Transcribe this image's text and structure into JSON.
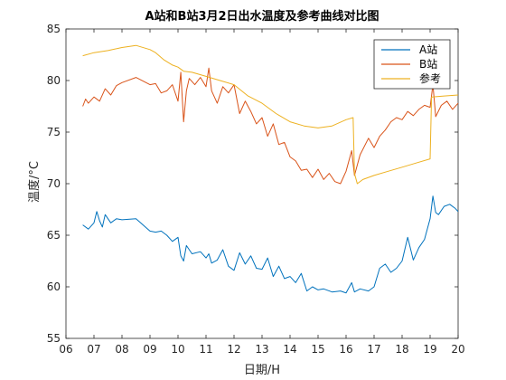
{
  "chart_data": {
    "type": "line",
    "title": "A站和B站3月2日出水温度及参考曲线对比图",
    "xlabel": "日期/H",
    "ylabel": "温度/°C",
    "xlim": [
      6,
      20
    ],
    "ylim": [
      55,
      85
    ],
    "xticks": [
      "06",
      "07",
      "08",
      "09",
      "10",
      "11",
      "12",
      "13",
      "14",
      "15",
      "16",
      "17",
      "18",
      "19",
      "20"
    ],
    "yticks": [
      "55",
      "60",
      "65",
      "70",
      "75",
      "80",
      "85"
    ],
    "grid": false,
    "legend_position": "top-right",
    "colors": {
      "A站": "#0072BD",
      "B站": "#D95319",
      "参考": "#EDB120"
    },
    "series": [
      {
        "name": "A站",
        "x": [
          6.6,
          6.8,
          7.0,
          7.1,
          7.2,
          7.3,
          7.4,
          7.6,
          7.8,
          8.0,
          8.5,
          9.0,
          9.2,
          9.4,
          9.6,
          9.8,
          10.0,
          10.1,
          10.2,
          10.3,
          10.5,
          10.8,
          11.0,
          11.1,
          11.2,
          11.4,
          11.6,
          11.8,
          12.0,
          12.2,
          12.4,
          12.6,
          12.8,
          13.0,
          13.2,
          13.4,
          13.6,
          13.8,
          14.0,
          14.2,
          14.4,
          14.6,
          14.8,
          15.0,
          15.2,
          15.5,
          15.8,
          16.0,
          16.2,
          16.3,
          16.5,
          16.8,
          17.0,
          17.2,
          17.4,
          17.6,
          17.8,
          18.0,
          18.2,
          18.4,
          18.6,
          18.8,
          19.0,
          19.1,
          19.2,
          19.3,
          19.5,
          19.7,
          19.9,
          20.0
        ],
        "values": [
          66.0,
          65.6,
          66.2,
          67.3,
          66.4,
          65.8,
          67.0,
          66.2,
          66.6,
          66.5,
          66.6,
          65.4,
          65.3,
          65.4,
          65.0,
          64.4,
          64.8,
          63.0,
          62.5,
          64.0,
          63.2,
          63.4,
          62.8,
          63.2,
          62.3,
          62.6,
          63.6,
          62.0,
          61.6,
          63.3,
          62.2,
          63.0,
          61.8,
          61.7,
          62.8,
          61.0,
          62.0,
          60.8,
          61.0,
          60.4,
          61.3,
          59.6,
          60.0,
          59.7,
          59.8,
          59.5,
          59.6,
          59.4,
          60.4,
          59.5,
          59.8,
          59.6,
          60.0,
          61.8,
          62.2,
          61.4,
          61.8,
          62.5,
          64.8,
          62.6,
          63.8,
          64.6,
          66.6,
          68.8,
          67.2,
          67.0,
          67.8,
          68.0,
          67.6,
          67.3
        ]
      },
      {
        "name": "B站",
        "x": [
          6.6,
          6.7,
          6.8,
          7.0,
          7.2,
          7.4,
          7.6,
          7.8,
          8.0,
          8.5,
          9.0,
          9.2,
          9.4,
          9.6,
          9.8,
          10.0,
          10.1,
          10.2,
          10.3,
          10.4,
          10.6,
          10.8,
          11.0,
          11.1,
          11.2,
          11.4,
          11.6,
          11.8,
          12.0,
          12.2,
          12.4,
          12.6,
          12.8,
          13.0,
          13.2,
          13.4,
          13.6,
          13.8,
          14.0,
          14.2,
          14.4,
          14.6,
          14.8,
          15.0,
          15.2,
          15.4,
          15.6,
          15.8,
          16.0,
          16.2,
          16.3,
          16.5,
          16.8,
          17.0,
          17.2,
          17.4,
          17.6,
          17.8,
          18.0,
          18.2,
          18.4,
          18.6,
          18.8,
          19.0,
          19.1,
          19.2,
          19.4,
          19.6,
          19.8,
          20.0
        ],
        "values": [
          77.5,
          78.2,
          77.8,
          78.4,
          78.0,
          79.2,
          78.6,
          79.5,
          79.8,
          80.3,
          79.6,
          79.7,
          78.8,
          79.0,
          79.6,
          78.0,
          80.8,
          76.0,
          79.0,
          80.2,
          79.6,
          80.3,
          79.4,
          81.2,
          79.0,
          77.8,
          79.4,
          78.8,
          79.6,
          76.8,
          78.0,
          77.0,
          75.8,
          76.4,
          74.6,
          75.8,
          73.8,
          74.0,
          72.6,
          72.2,
          71.3,
          71.4,
          70.6,
          71.4,
          70.4,
          71.0,
          70.2,
          70.0,
          71.2,
          73.2,
          70.8,
          72.8,
          74.4,
          73.5,
          74.6,
          75.2,
          76.0,
          76.4,
          76.2,
          77.0,
          76.6,
          77.2,
          77.6,
          77.4,
          79.6,
          76.5,
          77.6,
          78.0,
          77.2,
          77.8
        ]
      },
      {
        "name": "参考",
        "x": [
          6.6,
          7.0,
          7.5,
          8.0,
          8.5,
          9.0,
          9.2,
          9.5,
          9.8,
          10.0,
          10.2,
          10.5,
          11.0,
          11.5,
          12.0,
          12.5,
          13.0,
          13.5,
          14.0,
          14.5,
          15.0,
          15.5,
          16.0,
          16.25,
          16.3,
          16.4,
          16.6,
          17.0,
          17.5,
          18.0,
          18.5,
          19.0,
          19.05,
          19.5,
          20.0
        ],
        "values": [
          82.4,
          82.7,
          82.9,
          83.2,
          83.4,
          83.0,
          82.7,
          82.0,
          81.5,
          81.3,
          80.9,
          80.8,
          80.4,
          80.0,
          79.6,
          78.5,
          77.8,
          76.8,
          76.0,
          75.6,
          75.4,
          75.6,
          76.2,
          76.4,
          71.0,
          70.0,
          70.4,
          70.8,
          71.2,
          71.6,
          72.0,
          72.4,
          78.4,
          78.5,
          78.6
        ]
      }
    ]
  }
}
